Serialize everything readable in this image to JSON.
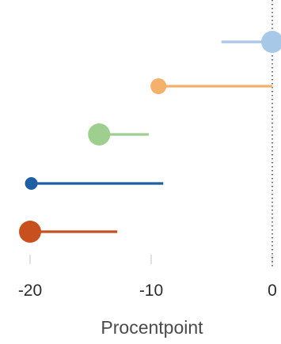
{
  "chart_data": {
    "type": "dumbbell",
    "xlabel": "Procentpoint",
    "xticks": [
      "-20",
      "-10",
      "0"
    ],
    "xlim": [
      -20,
      0
    ],
    "reference_line": {
      "x": 0,
      "style": "dotted"
    },
    "rows": [
      {
        "dot": 0,
        "dot_size": "large",
        "bar_from": -4.2,
        "bar_to": 0,
        "color": "#a8c8e8"
      },
      {
        "dot": -9.4,
        "dot_size": "medium",
        "bar_from": -9.4,
        "bar_to": 0,
        "color": "#f5b06a"
      },
      {
        "dot": -14.3,
        "dot_size": "large",
        "bar_from": -14.3,
        "bar_to": -10.2,
        "color": "#9ecf8e"
      },
      {
        "dot": -19.9,
        "dot_size": "small",
        "bar_from": -19.9,
        "bar_to": -9.0,
        "color": "#1c5fa3"
      },
      {
        "dot": -20.0,
        "dot_size": "large",
        "bar_from": -20.0,
        "bar_to": -12.8,
        "color": "#c8501e"
      }
    ]
  }
}
